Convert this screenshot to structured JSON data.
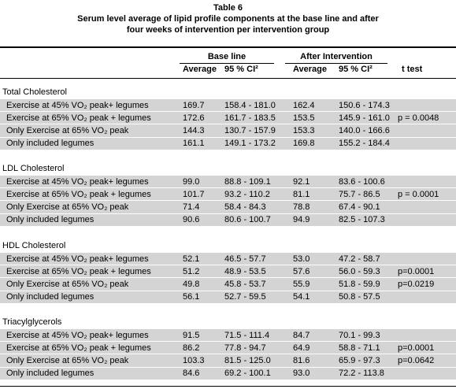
{
  "header": {
    "title": "Table 6",
    "subtitle": [
      "Serum level average of lipid profile components at the base line and after",
      "four weeks of intervention per intervention group"
    ]
  },
  "table": {
    "group_headers": [
      "Base line",
      "After Intervention"
    ],
    "columns": [
      "Average",
      "95 % CI²",
      "Average",
      "95 % CI²",
      "t test"
    ],
    "groups": [
      {
        "title": "Total Cholesterol",
        "rows": [
          [
            "Exercise at 45% VO₂ peak+ legumes",
            "169.7",
            "158.4 - 181.0",
            "162.4",
            "150.6 - 174.3",
            null
          ],
          [
            "Exercise at 65% VO₂ peak + legumes",
            "172.6",
            "161.7 - 183.5",
            "153.5",
            "145.9 - 161.0",
            "p = 0.0048"
          ],
          [
            "Only Exercise at 65% VO₂ peak",
            "144.3",
            "130.7 - 157.9",
            "153.3",
            "140.0 - 166.6",
            null
          ],
          [
            "Only included legumes",
            "161.1",
            "149.1 - 173.2",
            "169.8",
            "155.2 - 184.4",
            null
          ]
        ]
      },
      {
        "title": "LDL Cholesterol",
        "rows": [
          [
            "Exercise at 45% VO₂ peak+ legumes",
            "99.0",
            "88.8 - 109.1",
            "92.1",
            "83.6 - 100.6",
            null
          ],
          [
            "Exercise at 65% VO₂ peak + legumes",
            "101.7",
            "93.2 - 110.2",
            "81.1",
            "75.7 - 86.5",
            "p = 0.0001"
          ],
          [
            "Only Exercise at 65% VO₂ peak",
            "71.4",
            "58.4 - 84.3",
            "78.8",
            "67.4 - 90.1",
            null
          ],
          [
            "Only included legumes",
            "90.6",
            "80.6 - 100.7",
            "94.9",
            "82.5 - 107.3",
            null
          ]
        ]
      },
      {
        "title": "HDL Cholesterol",
        "rows": [
          [
            "Exercise at 45% VO₂ peak+ legumes",
            "52.1",
            "46.5 - 57.7",
            "53.0",
            "47.2 - 58.7",
            null
          ],
          [
            "Exercise at 65% VO₂ peak + legumes",
            "51.2",
            "48.9 - 53.5",
            "57.6",
            "56.0 - 59.3",
            "p=0.0001"
          ],
          [
            "Only Exercise at 65% VO₂ peak",
            "49.8",
            "45.8 - 53.7",
            "55.9",
            "51.8 - 59.9",
            "p=0.0219"
          ],
          [
            "Only included legumes",
            "56.1",
            "52.7 - 59.5",
            "54.1",
            "50.8 - 57.5",
            null
          ]
        ]
      },
      {
        "title": "Triacylglycerols",
        "rows": [
          [
            "Exercise at 45% VO₂ peak+ legumes",
            "91.5",
            "71.5 - 111.4",
            "84.7",
            "70.1 - 99.3",
            null
          ],
          [
            "Exercise at 65% VO₂ peak + legumes",
            "86.2",
            "77.8 - 94.7",
            "64.9",
            "58.8 - 71.1",
            "p=0.0001"
          ],
          [
            "Only Exercise at 65% VO₂ peak",
            "103.3",
            "81.5 - 125.0",
            "81.6",
            "65.9 - 97.3",
            "p=0.0642"
          ],
          [
            "Only included legumes",
            "84.6",
            "69.2 - 100.1",
            "93.0",
            "72.2 - 113.8",
            null
          ]
        ]
      }
    ]
  }
}
